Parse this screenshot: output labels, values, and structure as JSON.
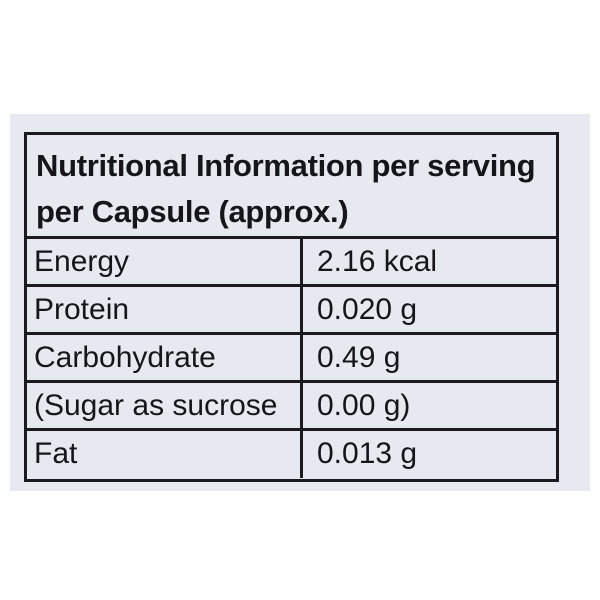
{
  "table": {
    "title_line1": "Nutritional Information per serving",
    "title_line2": "per Capsule (approx.)",
    "rows": [
      {
        "name": "Energy",
        "value": "2.16 kcal"
      },
      {
        "name": "Protein",
        "value": "0.020 g"
      },
      {
        "name": "Carbohydrate",
        "value": "0.49 g"
      },
      {
        "name": "(Sugar as sucrose",
        "value": "0.00 g)"
      },
      {
        "name": "Fat",
        "value": "0.013 g"
      }
    ]
  },
  "colors": {
    "panel_background": "#e7e9f0",
    "page_background": "#ffffff",
    "text_and_border": "#1b1b1f"
  }
}
